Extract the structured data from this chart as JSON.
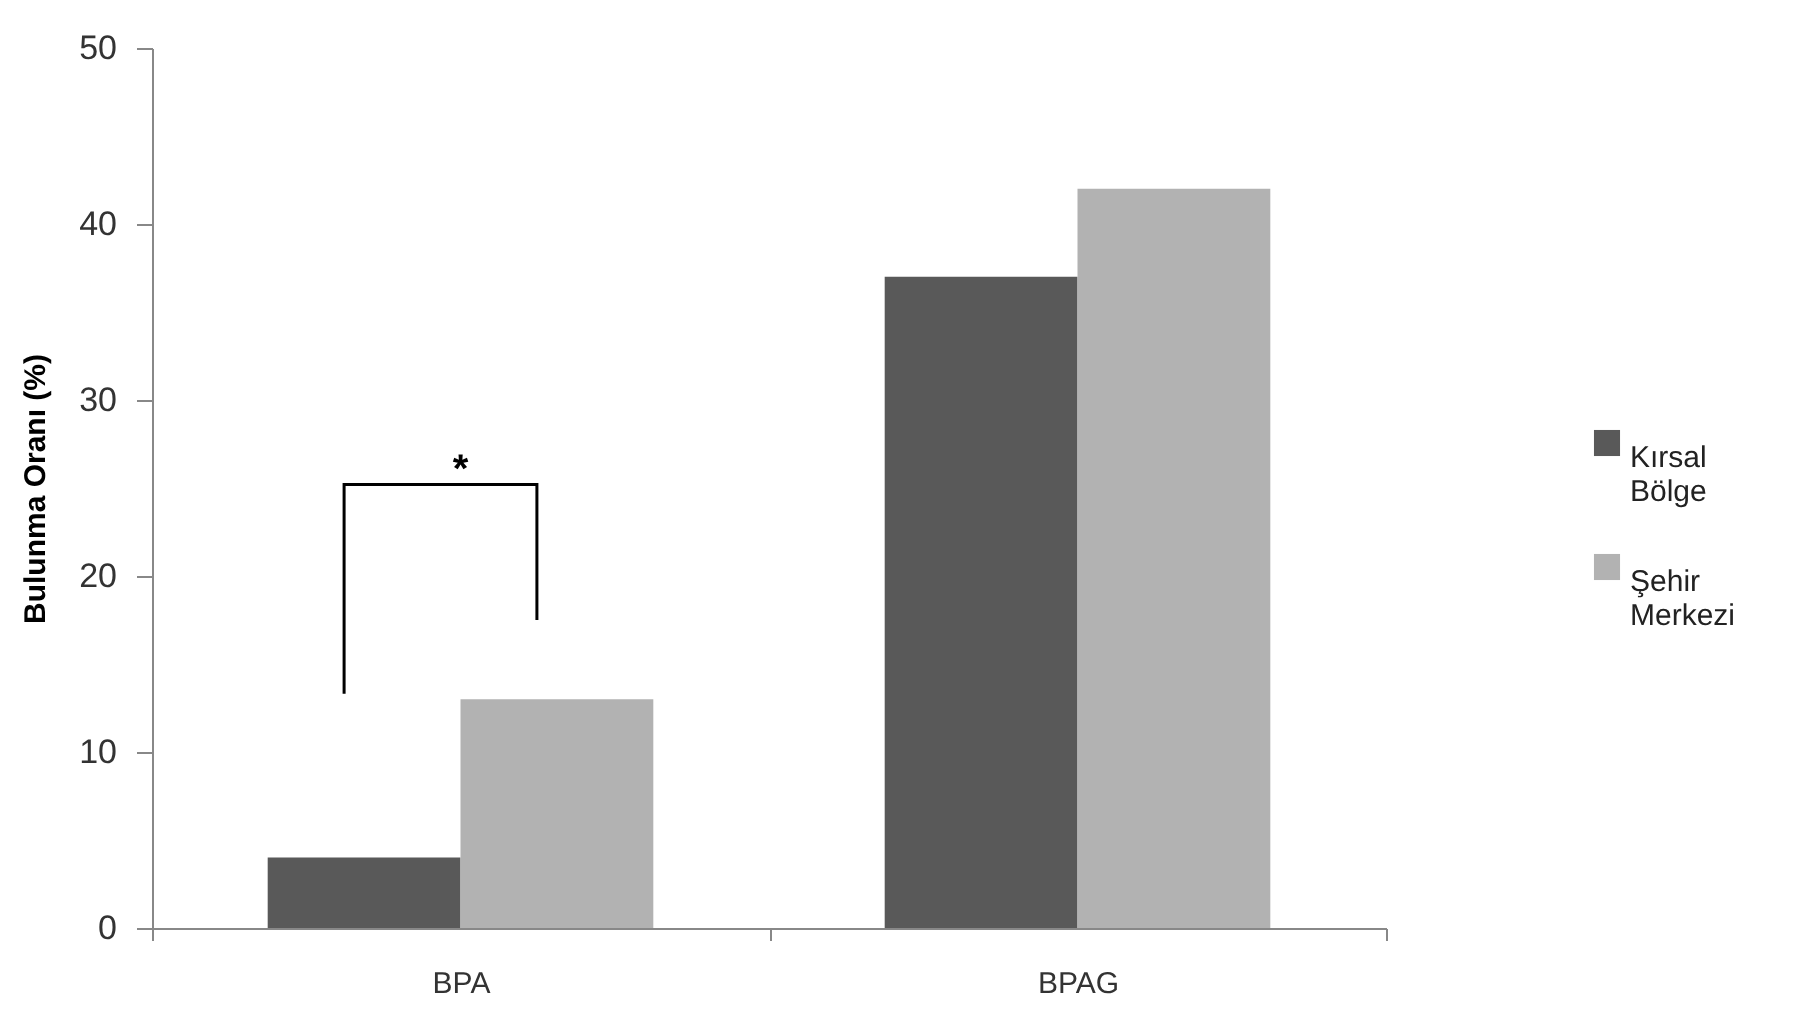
{
  "chart_data": {
    "type": "bar",
    "ylabel": "Bulunma Oranı (%)",
    "categories": [
      "BPA",
      "BPAG"
    ],
    "series": [
      {
        "name": "Kırsal Bölge",
        "color": "#595959",
        "values": [
          4,
          37
        ]
      },
      {
        "name": "Şehir Merkezi",
        "color": "#b2b2b2",
        "values": [
          13,
          42
        ]
      }
    ],
    "ylim": [
      0,
      50
    ],
    "yticks": [
      0,
      10,
      20,
      30,
      40,
      50
    ],
    "grid": false,
    "legend": "right",
    "annotations": [
      "*"
    ]
  }
}
